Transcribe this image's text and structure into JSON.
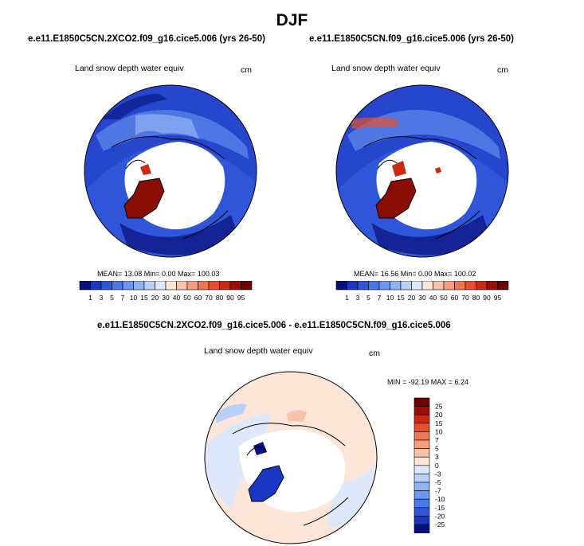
{
  "figure": {
    "title": "DJF"
  },
  "chart_data": [
    {
      "type": "heatmap",
      "projection": "north-polar-stereographic",
      "title": "e.e11.E1850C5CN.2XCO2.f09_g16.cice5.006 (yrs 26-50)",
      "variable": "Land snow depth water equiv",
      "units": "cm",
      "stats": {
        "mean": "13.08",
        "min": "0.00",
        "max": "100.03"
      },
      "stats_text": "MEAN=  13.08  Min=   0.00  Max= 100.03",
      "colorbar": {
        "orientation": "horizontal",
        "levels": [
          1,
          3,
          5,
          7,
          10,
          15,
          20,
          30,
          40,
          50,
          60,
          70,
          80,
          90,
          95
        ],
        "tick_labels": [
          "1",
          "3",
          "5",
          "7",
          "10",
          "15",
          "20",
          "30",
          "40",
          "50",
          "60",
          "70",
          "80",
          "90",
          "95"
        ],
        "colors": [
          "#08107c",
          "#1b36c2",
          "#2f56d8",
          "#4a78e8",
          "#6c96f0",
          "#91b3f5",
          "#b9d0f8",
          "#dde9fb",
          "#fde5d8",
          "#f8c2a8",
          "#f59d7c",
          "#ef7652",
          "#e4502f",
          "#c82a12",
          "#9c0f07",
          "#6d0000"
        ]
      }
    },
    {
      "type": "heatmap",
      "projection": "north-polar-stereographic",
      "title": "e.e11.E1850C5CN.f09_g16.cice5.006 (yrs 26-50)",
      "variable": "Land snow depth water equiv",
      "units": "cm",
      "stats": {
        "mean": "16.56",
        "min": "0.00",
        "max": "100.02"
      },
      "stats_text": "MEAN=  16.56  Min=   0.00  Max= 100.02",
      "colorbar": {
        "orientation": "horizontal",
        "levels": [
          1,
          3,
          5,
          7,
          10,
          15,
          20,
          30,
          40,
          50,
          60,
          70,
          80,
          90,
          95
        ],
        "tick_labels": [
          "1",
          "3",
          "5",
          "7",
          "10",
          "15",
          "20",
          "30",
          "40",
          "50",
          "60",
          "70",
          "80",
          "90",
          "95"
        ],
        "colors": [
          "#08107c",
          "#1b36c2",
          "#2f56d8",
          "#4a78e8",
          "#6c96f0",
          "#91b3f5",
          "#b9d0f8",
          "#dde9fb",
          "#fde5d8",
          "#f8c2a8",
          "#f59d7c",
          "#ef7652",
          "#e4502f",
          "#c82a12",
          "#9c0f07",
          "#6d0000"
        ]
      }
    },
    {
      "type": "heatmap",
      "projection": "north-polar-stereographic",
      "title": "e.e11.E1850C5CN.2XCO2.f09_g16.cice5.006 - e.e11.E1850C5CN.f09_g16.cice5.006",
      "variable": "Land snow depth water equiv",
      "units": "cm",
      "stats": {
        "min": "-92.19",
        "max": "6.24"
      },
      "stats_text": "MIN = -92.19 MAX =   6.24",
      "colorbar": {
        "orientation": "vertical",
        "levels": [
          -25,
          -20,
          -15,
          -10,
          -7,
          -5,
          -3,
          0,
          3,
          5,
          7,
          10,
          15,
          20,
          25
        ],
        "tick_labels": [
          "25",
          "20",
          "15",
          "10",
          "7",
          "5",
          "3",
          "0",
          "-3",
          "-5",
          "-7",
          "-10",
          "-15",
          "-20",
          "-25"
        ],
        "colors": [
          "#08107c",
          "#1b36c2",
          "#2f56d8",
          "#4a78e8",
          "#6c96f0",
          "#91b3f5",
          "#b9d0f8",
          "#dde9fb",
          "#fde5d8",
          "#f8c2a8",
          "#f59d7c",
          "#ef7652",
          "#e4502f",
          "#c82a12",
          "#9c0f07",
          "#6d0000"
        ]
      }
    }
  ]
}
